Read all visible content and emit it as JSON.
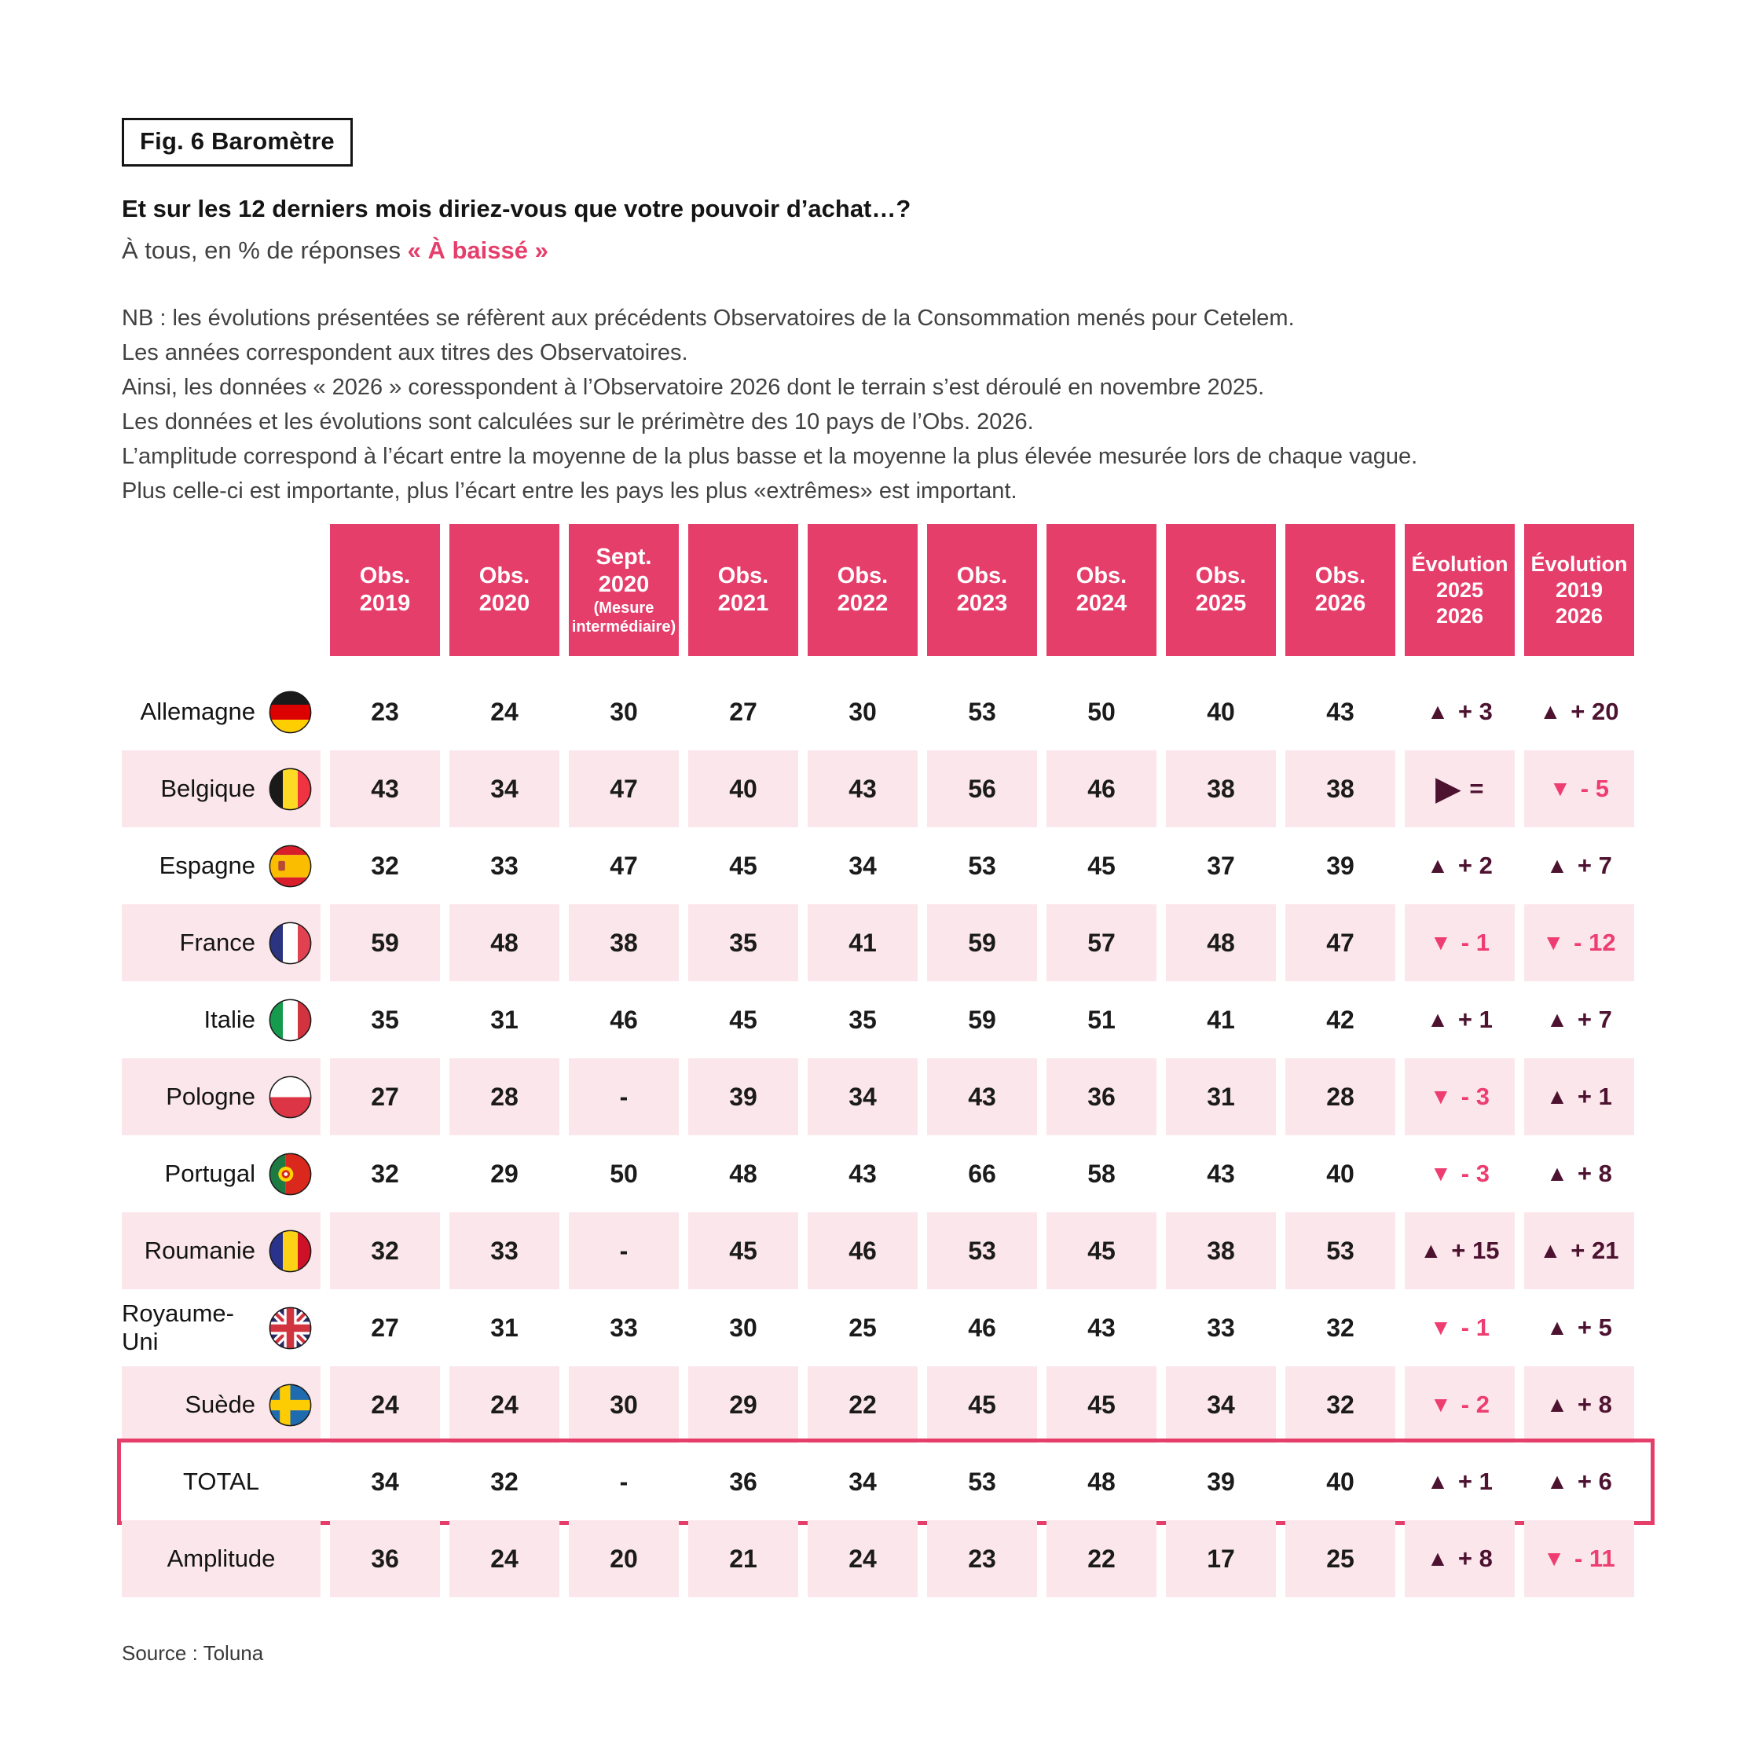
{
  "figure": {
    "label": "Fig. 6 Baromètre"
  },
  "header": {
    "question": "Et sur les 12 derniers mois diriez-vous que votre pouvoir d’achat…?",
    "subtitle_prefix": "À tous, en % de réponses",
    "subtitle_accent": "« À baissé »"
  },
  "notes": {
    "lines": [
      "NB : les évolutions présentées se réfèrent aux précédents Observatoires de la Consommation menés pour Cetelem.",
      "Les années correspondent aux titres des Observatoires.",
      "Ainsi, les données « 2026 » coresspondent à l’Observatoire 2026 dont le terrain s’est déroulé en novembre 2025.",
      "Les données et les évolutions sont calculées sur le prérimètre des 10 pays de l’Obs. 2026.",
      "L’amplitude correspond à l’écart entre la moyenne de la plus basse et la moyenne la plus élevée mesurée lors de chaque vague.",
      "Plus celle-ci est importante, plus l’écart entre les pays les plus «extrêmes» est important."
    ]
  },
  "chart_data": {
    "type": "table",
    "title": "Et sur les 12 derniers mois diriez-vous que votre pouvoir d’achat…?",
    "unit": "% de réponses « À baissé »",
    "missing_marker": "-",
    "columns": [
      {
        "id": "obs_2019",
        "lines": [
          "Obs.",
          "2019"
        ]
      },
      {
        "id": "obs_2020",
        "lines": [
          "Obs.",
          "2020"
        ]
      },
      {
        "id": "sept_2020",
        "lines": [
          "Sept.",
          "2020"
        ],
        "small_lines": [
          "(Mesure",
          "intermédiaire)"
        ]
      },
      {
        "id": "obs_2021",
        "lines": [
          "Obs.",
          "2021"
        ]
      },
      {
        "id": "obs_2022",
        "lines": [
          "Obs.",
          "2022"
        ]
      },
      {
        "id": "obs_2023",
        "lines": [
          "Obs.",
          "2023"
        ]
      },
      {
        "id": "obs_2024",
        "lines": [
          "Obs.",
          "2024"
        ]
      },
      {
        "id": "obs_2025",
        "lines": [
          "Obs.",
          "2025"
        ]
      },
      {
        "id": "obs_2026",
        "lines": [
          "Obs.",
          "2026"
        ]
      },
      {
        "id": "evolution_2025_2026",
        "lines": [
          "Évolution",
          "2025",
          "2026"
        ],
        "evo": true
      },
      {
        "id": "evolution_2019_2026",
        "lines": [
          "Évolution",
          "2019",
          "2026"
        ],
        "evo": true
      }
    ],
    "rows": [
      {
        "label": "Allemagne",
        "flag": "de",
        "band": false,
        "values": [
          23,
          24,
          30,
          27,
          30,
          53,
          50,
          40,
          43
        ],
        "evolutions": [
          {
            "dir": "up",
            "text": "+ 3"
          },
          {
            "dir": "up",
            "text": "+ 20"
          }
        ]
      },
      {
        "label": "Belgique",
        "flag": "be",
        "band": true,
        "values": [
          43,
          34,
          47,
          40,
          43,
          56,
          46,
          38,
          38
        ],
        "evolutions": [
          {
            "dir": "equal",
            "text": "="
          },
          {
            "dir": "down",
            "text": "- 5"
          }
        ]
      },
      {
        "label": "Espagne",
        "flag": "es",
        "band": false,
        "values": [
          32,
          33,
          47,
          45,
          34,
          53,
          45,
          37,
          39
        ],
        "evolutions": [
          {
            "dir": "up",
            "text": "+ 2"
          },
          {
            "dir": "up",
            "text": "+ 7"
          }
        ]
      },
      {
        "label": "France",
        "flag": "fr",
        "band": true,
        "values": [
          59,
          48,
          38,
          35,
          41,
          59,
          57,
          48,
          47
        ],
        "evolutions": [
          {
            "dir": "down",
            "text": "- 1"
          },
          {
            "dir": "down",
            "text": "- 12"
          }
        ]
      },
      {
        "label": "Italie",
        "flag": "it",
        "band": false,
        "values": [
          35,
          31,
          46,
          45,
          35,
          59,
          51,
          41,
          42
        ],
        "evolutions": [
          {
            "dir": "up",
            "text": "+ 1"
          },
          {
            "dir": "up",
            "text": "+ 7"
          }
        ]
      },
      {
        "label": "Pologne",
        "flag": "pl",
        "band": true,
        "values": [
          27,
          28,
          null,
          39,
          34,
          43,
          36,
          31,
          28
        ],
        "evolutions": [
          {
            "dir": "down",
            "text": "- 3"
          },
          {
            "dir": "up",
            "text": "+ 1"
          }
        ]
      },
      {
        "label": "Portugal",
        "flag": "pt",
        "band": false,
        "values": [
          32,
          29,
          50,
          48,
          43,
          66,
          58,
          43,
          40
        ],
        "evolutions": [
          {
            "dir": "down",
            "text": "- 3"
          },
          {
            "dir": "up",
            "text": "+ 8"
          }
        ]
      },
      {
        "label": "Roumanie",
        "flag": "ro",
        "band": true,
        "values": [
          32,
          33,
          null,
          45,
          46,
          53,
          45,
          38,
          53
        ],
        "evolutions": [
          {
            "dir": "up",
            "text": "+ 15"
          },
          {
            "dir": "up",
            "text": "+ 21"
          }
        ]
      },
      {
        "label": "Royaume-Uni",
        "flag": "gb",
        "band": false,
        "values": [
          27,
          31,
          33,
          30,
          25,
          46,
          43,
          33,
          32
        ],
        "evolutions": [
          {
            "dir": "down",
            "text": "- 1"
          },
          {
            "dir": "up",
            "text": "+ 5"
          }
        ]
      },
      {
        "label": "Suède",
        "flag": "se",
        "band": true,
        "values": [
          24,
          24,
          30,
          29,
          22,
          45,
          45,
          34,
          32
        ],
        "evolutions": [
          {
            "dir": "down",
            "text": "- 2"
          },
          {
            "dir": "up",
            "text": "+ 8"
          }
        ]
      },
      {
        "label": "TOTAL",
        "flag": null,
        "band": false,
        "total": true,
        "values": [
          34,
          32,
          null,
          36,
          34,
          53,
          48,
          39,
          40
        ],
        "evolutions": [
          {
            "dir": "up",
            "text": "+ 1"
          },
          {
            "dir": "up",
            "text": "+ 6"
          }
        ]
      },
      {
        "label": "Amplitude",
        "flag": null,
        "band": true,
        "values": [
          36,
          24,
          20,
          21,
          24,
          23,
          22,
          17,
          25
        ],
        "evolutions": [
          {
            "dir": "up",
            "text": "+ 8"
          },
          {
            "dir": "down",
            "text": "- 11"
          }
        ]
      }
    ]
  },
  "footer": {
    "source": "Source : Toluna"
  },
  "colors": {
    "accent": "#E63E6B",
    "band": "#FBE7EB",
    "up_dark": "#4D1230",
    "down_pink": "#EE3E71"
  }
}
